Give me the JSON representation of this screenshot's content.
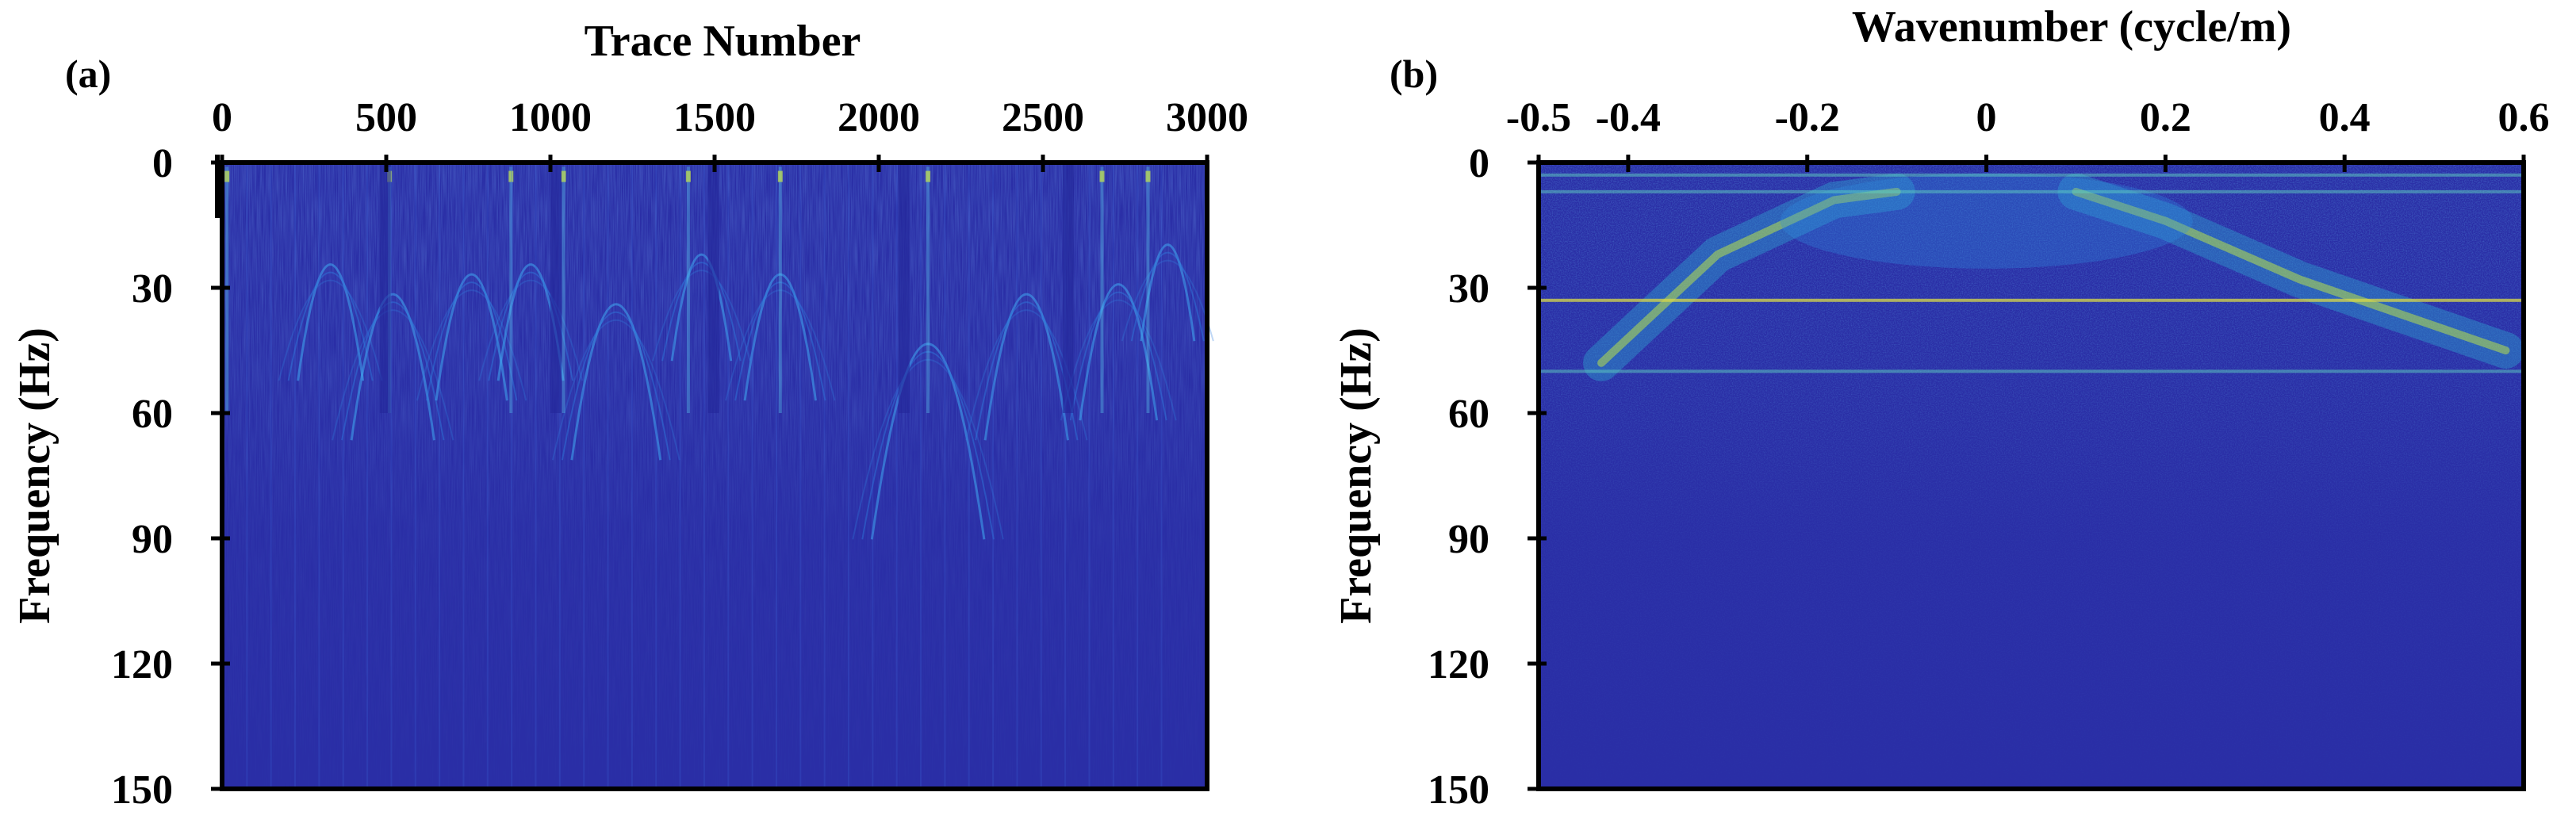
{
  "chart_data": [
    {
      "type": "heatmap",
      "panel_label": "(a)",
      "title": "",
      "xlabel": "Trace Number",
      "ylabel": "Frequency (Hz)",
      "xlim": [
        0,
        3000
      ],
      "ylim": [
        150,
        0
      ],
      "x_ticks": [
        0,
        500,
        1000,
        1500,
        2000,
        2500,
        3000
      ],
      "x_tick_labels": [
        "0",
        "500",
        "1000",
        "1500",
        "2000",
        "2500",
        "3000"
      ],
      "y_ticks": [
        0,
        30,
        60,
        90,
        120,
        150
      ],
      "y_tick_labels": [
        "0",
        "30",
        "60",
        "90",
        "120",
        "150"
      ],
      "x_axis_position": "top",
      "colormap": "parula",
      "background_color": "#2a2ea6",
      "description_of_content": "Amplitude spectrum per trace; energy concentrated below ~50 Hz with arc-shaped features and vertical streaks.",
      "bright_columns": [
        15,
        510,
        880,
        1040,
        1420,
        1700,
        2150,
        2680,
        2820
      ]
    },
    {
      "type": "heatmap",
      "panel_label": "(b)",
      "title": "",
      "xlabel": "Wavenumber (cycle/m)",
      "ylabel": "Frequency (Hz)",
      "xlim": [
        -0.5,
        0.6
      ],
      "ylim": [
        150,
        0
      ],
      "x_ticks": [
        -0.5,
        -0.4,
        -0.2,
        0,
        0.2,
        0.4,
        0.6
      ],
      "x_tick_labels": [
        "-0.5",
        "-0.4",
        "-0.2",
        "0",
        "0.2",
        "0.4",
        "0.6"
      ],
      "y_ticks": [
        0,
        30,
        60,
        90,
        120,
        150
      ],
      "y_tick_labels": [
        "0",
        "30",
        "60",
        "90",
        "120",
        "150"
      ],
      "x_axis_position": "top",
      "colormap": "parula",
      "background_color": "#2a2ea6",
      "description_of_content": "F-K spectrum; V-shaped energy band with apex near 7 Hz at about -0.05..0.1 cycle/m, spreading to ±0.5 cycle/m around 45 Hz; horizontal bright lines near 7, 33 and 50 Hz.",
      "horizontal_lines_hz": [
        3,
        7,
        33,
        50
      ]
    }
  ]
}
